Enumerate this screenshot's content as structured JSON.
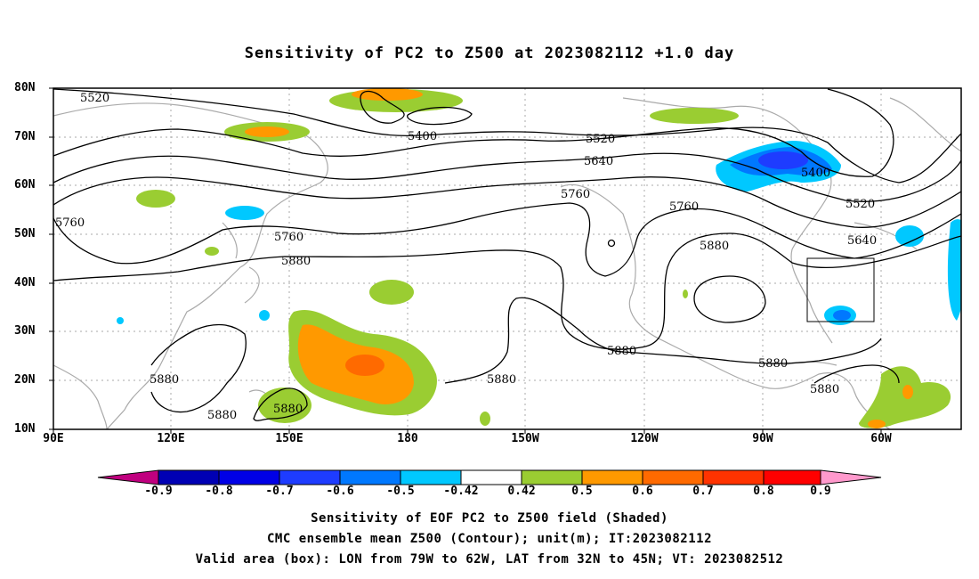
{
  "title": "Sensitivity of PC2 to Z500 at 2023082112 +1.0 day",
  "map": {
    "lat_labels": [
      "80N",
      "70N",
      "60N",
      "50N",
      "40N",
      "30N",
      "20N",
      "10N"
    ],
    "lon_labels": [
      "90E",
      "120E",
      "150E",
      "180",
      "150W",
      "120W",
      "90W",
      "60W"
    ],
    "contour_labels": [
      "5520",
      "5400",
      "5520",
      "5640",
      "5400",
      "5760",
      "5760",
      "5520",
      "5760",
      "5640",
      "5880",
      "5880",
      "5880",
      "5880",
      "5880",
      "5880",
      "5880",
      "5880",
      "5880"
    ],
    "colors": {
      "land": "#aaaaaa",
      "grid": "#aaaaaa",
      "contour": "#000000",
      "box": "#000000"
    }
  },
  "colorbar": {
    "labels": [
      "-0.9",
      "-0.8",
      "-0.7",
      "-0.6",
      "-0.5",
      "-0.42",
      "0.42",
      "0.5",
      "0.6",
      "0.7",
      "0.8",
      "0.9"
    ],
    "colors": [
      "#c0007f",
      "#0000b4",
      "#0000e6",
      "#1e3cff",
      "#0078ff",
      "#00c8ff",
      "#ffffff",
      "#9acd32",
      "#ff9900",
      "#ff6a00",
      "#ff3300",
      "#ff0000",
      "#ff99cc"
    ]
  },
  "captions": [
    "Sensitivity of EOF PC2 to Z500 field (Shaded)",
    "CMC ensemble mean Z500 (Contour); unit(m); IT:2023082112",
    "Valid area (box): LON from 79W to 62W, LAT from 32N to 45N; VT: 2023082512"
  ]
}
